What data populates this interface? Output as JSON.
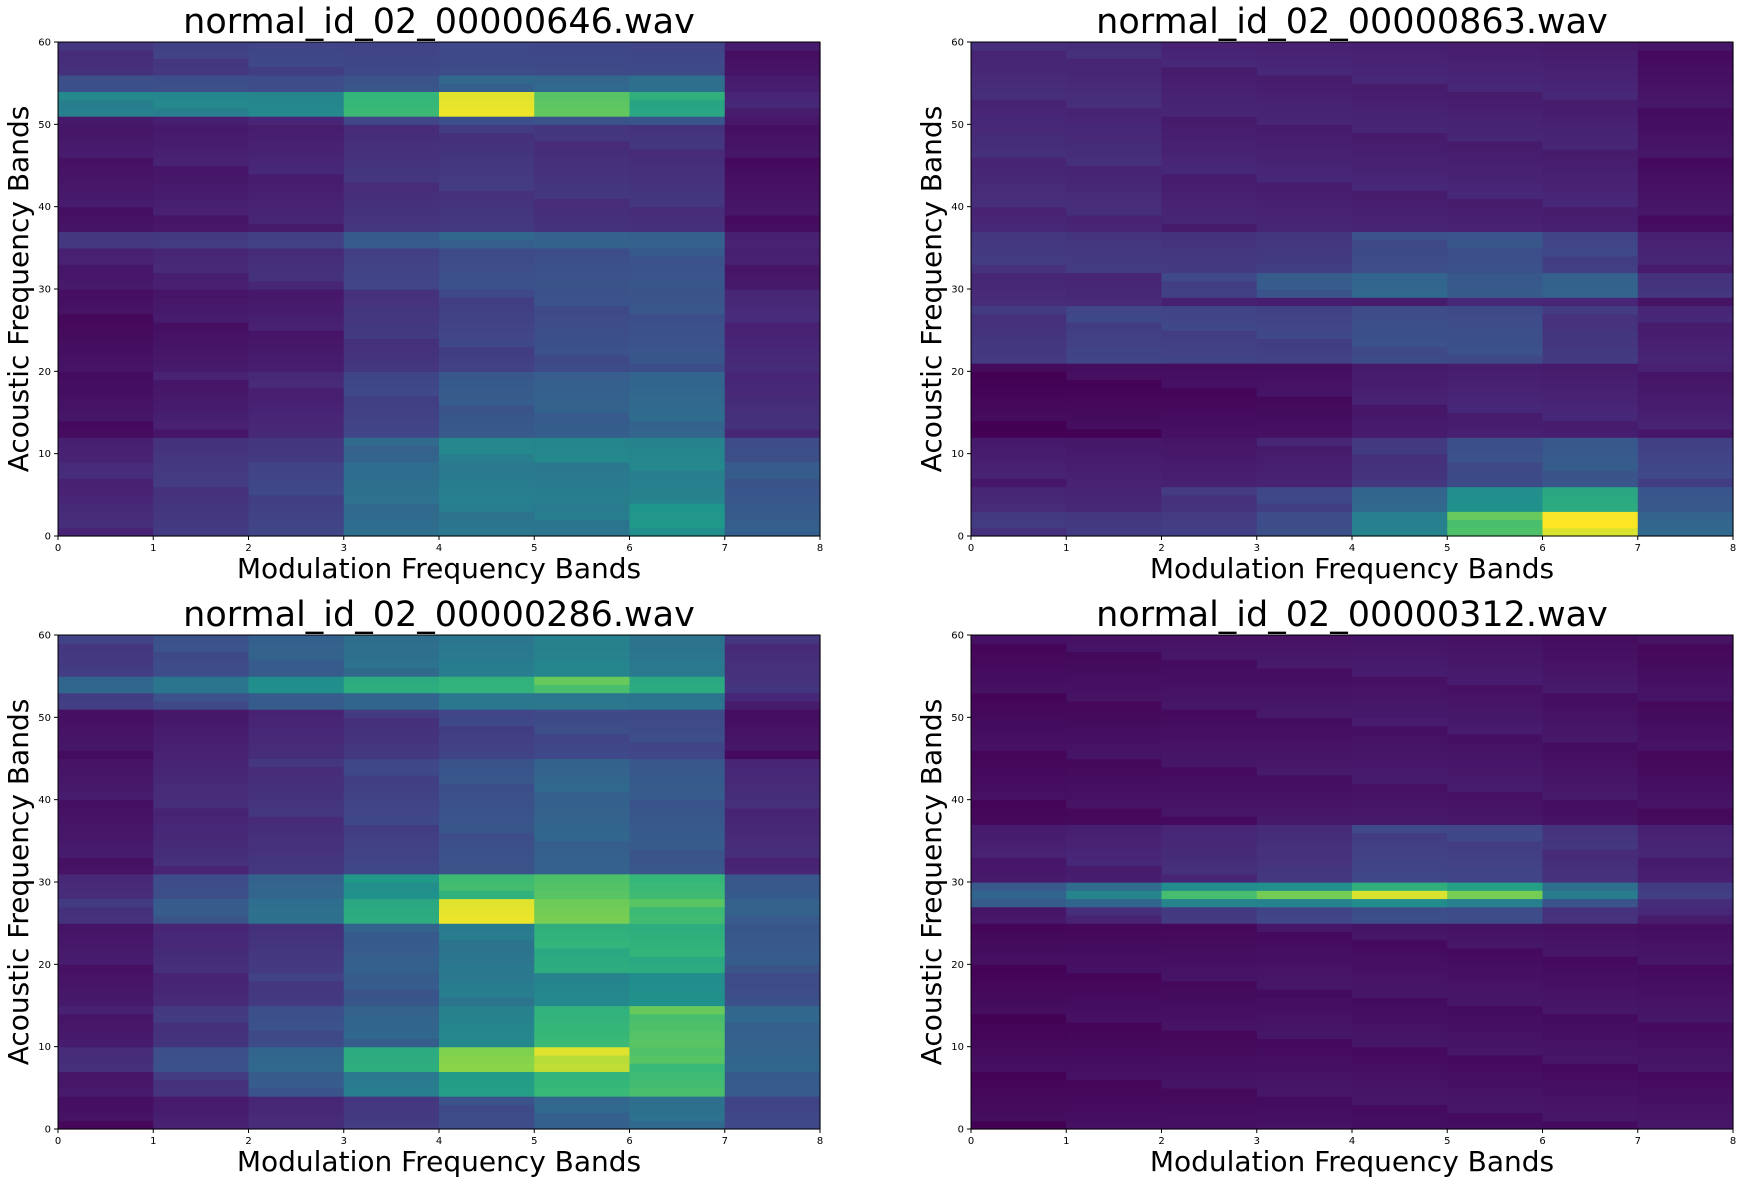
{
  "chart_data": [
    {
      "type": "heatmap",
      "title": "normal_id_02_00000646.wav",
      "xlabel": "Modulation Frequency Bands",
      "ylabel": "Acoustic Frequency Bands",
      "xlim": [
        0,
        8
      ],
      "ylim": [
        0,
        60
      ],
      "xticks": [
        "0",
        "1",
        "2",
        "3",
        "4",
        "5",
        "6",
        "7",
        "8"
      ],
      "yticks": [
        "0",
        "10",
        "20",
        "30",
        "40",
        "50",
        "60"
      ],
      "colormap": "viridis",
      "value_range": [
        0,
        1
      ],
      "columns": 8,
      "rows": 60,
      "base": [
        0.1,
        0.13,
        0.16,
        0.24,
        0.3,
        0.32,
        0.34,
        0.1
      ],
      "highlights": [
        {
          "y0": 0,
          "y1": 4,
          "values": [
            0.15,
            0.2,
            0.25,
            0.45,
            0.5,
            0.5,
            0.62,
            0.36
          ]
        },
        {
          "y0": 4,
          "y1": 9,
          "values": [
            0.14,
            0.2,
            0.25,
            0.45,
            0.52,
            0.52,
            0.55,
            0.35
          ]
        },
        {
          "y0": 9,
          "y1": 12,
          "values": [
            0.12,
            0.2,
            0.22,
            0.42,
            0.55,
            0.55,
            0.55,
            0.3
          ]
        },
        {
          "y0": 12,
          "y1": 20,
          "values": [
            0.06,
            0.1,
            0.13,
            0.25,
            0.35,
            0.38,
            0.42,
            0.16
          ]
        },
        {
          "y0": 20,
          "y1": 30,
          "values": [
            0.05,
            0.08,
            0.1,
            0.2,
            0.25,
            0.3,
            0.32,
            0.14
          ]
        },
        {
          "y0": 35,
          "y1": 37,
          "values": [
            0.2,
            0.22,
            0.25,
            0.38,
            0.4,
            0.38,
            0.38,
            0.12
          ]
        },
        {
          "y0": 37,
          "y1": 50,
          "values": [
            0.08,
            0.1,
            0.12,
            0.18,
            0.2,
            0.18,
            0.18,
            0.06
          ]
        },
        {
          "y0": 51,
          "y1": 54,
          "values": [
            0.55,
            0.55,
            0.55,
            0.75,
            0.98,
            0.82,
            0.7,
            0.12
          ]
        },
        {
          "y0": 54,
          "y1": 56,
          "values": [
            0.3,
            0.3,
            0.3,
            0.35,
            0.4,
            0.4,
            0.45,
            0.1
          ]
        },
        {
          "y0": 56,
          "y1": 60,
          "values": [
            0.18,
            0.22,
            0.25,
            0.25,
            0.28,
            0.28,
            0.28,
            0.08
          ]
        }
      ]
    },
    {
      "type": "heatmap",
      "title": "normal_id_02_00000863.wav",
      "xlabel": "Modulation Frequency Bands",
      "ylabel": "Acoustic Frequency Bands",
      "xlim": [
        0,
        8
      ],
      "ylim": [
        0,
        60
      ],
      "xticks": [
        "0",
        "1",
        "2",
        "3",
        "4",
        "5",
        "6",
        "7",
        "8"
      ],
      "yticks": [
        "0",
        "10",
        "20",
        "30",
        "40",
        "50",
        "60"
      ],
      "colormap": "viridis",
      "value_range": [
        0,
        1
      ],
      "columns": 8,
      "rows": 60,
      "base": [
        0.15,
        0.15,
        0.12,
        0.12,
        0.12,
        0.12,
        0.12,
        0.06
      ],
      "highlights": [
        {
          "y0": 0,
          "y1": 3,
          "values": [
            0.2,
            0.2,
            0.22,
            0.3,
            0.55,
            0.8,
            0.98,
            0.4
          ]
        },
        {
          "y0": 3,
          "y1": 6,
          "values": [
            0.15,
            0.15,
            0.2,
            0.25,
            0.4,
            0.6,
            0.7,
            0.35
          ]
        },
        {
          "y0": 6,
          "y1": 12,
          "values": [
            0.1,
            0.1,
            0.1,
            0.12,
            0.2,
            0.3,
            0.35,
            0.25
          ]
        },
        {
          "y0": 12,
          "y1": 21,
          "values": [
            0.02,
            0.03,
            0.04,
            0.05,
            0.1,
            0.12,
            0.12,
            0.1
          ]
        },
        {
          "y0": 21,
          "y1": 28,
          "values": [
            0.2,
            0.25,
            0.25,
            0.25,
            0.3,
            0.3,
            0.2,
            0.12
          ]
        },
        {
          "y0": 29,
          "y1": 32,
          "values": [
            0.15,
            0.15,
            0.25,
            0.35,
            0.4,
            0.35,
            0.4,
            0.2
          ]
        },
        {
          "y0": 32,
          "y1": 37,
          "values": [
            0.2,
            0.2,
            0.2,
            0.22,
            0.3,
            0.32,
            0.25,
            0.12
          ]
        },
        {
          "y0": 37,
          "y1": 60,
          "values": [
            0.15,
            0.15,
            0.12,
            0.12,
            0.12,
            0.12,
            0.12,
            0.06
          ]
        }
      ]
    },
    {
      "type": "heatmap",
      "title": "normal_id_02_00000286.wav",
      "xlabel": "Modulation Frequency Bands",
      "ylabel": "Acoustic Frequency Bands",
      "xlim": [
        0,
        8
      ],
      "ylim": [
        0,
        60
      ],
      "xticks": [
        "0",
        "1",
        "2",
        "3",
        "4",
        "5",
        "6",
        "7",
        "8"
      ],
      "yticks": [
        "0",
        "10",
        "20",
        "30",
        "40",
        "50",
        "60"
      ],
      "colormap": "viridis",
      "value_range": [
        0,
        1
      ],
      "columns": 8,
      "rows": 60,
      "base": [
        0.08,
        0.12,
        0.18,
        0.25,
        0.35,
        0.45,
        0.5,
        0.25
      ],
      "highlights": [
        {
          "y0": 0,
          "y1": 4,
          "values": [
            0.05,
            0.1,
            0.15,
            0.22,
            0.3,
            0.4,
            0.45,
            0.25
          ]
        },
        {
          "y0": 4,
          "y1": 7,
          "values": [
            0.1,
            0.2,
            0.35,
            0.5,
            0.65,
            0.75,
            0.78,
            0.38
          ]
        },
        {
          "y0": 7,
          "y1": 10,
          "values": [
            0.15,
            0.3,
            0.42,
            0.72,
            0.88,
            0.95,
            0.78,
            0.4
          ]
        },
        {
          "y0": 10,
          "y1": 15,
          "values": [
            0.1,
            0.2,
            0.3,
            0.4,
            0.55,
            0.75,
            0.8,
            0.4
          ]
        },
        {
          "y0": 15,
          "y1": 19,
          "values": [
            0.08,
            0.15,
            0.22,
            0.35,
            0.5,
            0.55,
            0.6,
            0.3
          ]
        },
        {
          "y0": 19,
          "y1": 25,
          "values": [
            0.08,
            0.15,
            0.2,
            0.38,
            0.5,
            0.72,
            0.72,
            0.35
          ]
        },
        {
          "y0": 25,
          "y1": 28,
          "values": [
            0.2,
            0.35,
            0.45,
            0.7,
            0.98,
            0.85,
            0.78,
            0.38
          ]
        },
        {
          "y0": 28,
          "y1": 31,
          "values": [
            0.15,
            0.3,
            0.42,
            0.62,
            0.75,
            0.78,
            0.75,
            0.35
          ]
        },
        {
          "y0": 31,
          "y1": 45,
          "values": [
            0.08,
            0.15,
            0.18,
            0.25,
            0.32,
            0.4,
            0.35,
            0.15
          ]
        },
        {
          "y0": 45,
          "y1": 51,
          "values": [
            0.06,
            0.1,
            0.15,
            0.2,
            0.25,
            0.28,
            0.28,
            0.06
          ]
        },
        {
          "y0": 51,
          "y1": 53,
          "values": [
            0.25,
            0.3,
            0.35,
            0.4,
            0.5,
            0.5,
            0.5,
            0.12
          ]
        },
        {
          "y0": 53,
          "y1": 55,
          "values": [
            0.4,
            0.48,
            0.6,
            0.72,
            0.75,
            0.8,
            0.68,
            0.18
          ]
        },
        {
          "y0": 55,
          "y1": 60,
          "values": [
            0.22,
            0.3,
            0.38,
            0.45,
            0.5,
            0.55,
            0.5,
            0.18
          ]
        }
      ]
    },
    {
      "type": "heatmap",
      "title": "normal_id_02_00000312.wav",
      "xlabel": "Modulation Frequency Bands",
      "ylabel": "Acoustic Frequency Bands",
      "xlim": [
        0,
        8
      ],
      "ylim": [
        0,
        60
      ],
      "xticks": [
        "0",
        "1",
        "2",
        "3",
        "4",
        "5",
        "6",
        "7",
        "8"
      ],
      "yticks": [
        "0",
        "10",
        "20",
        "30",
        "40",
        "50",
        "60"
      ],
      "colormap": "viridis",
      "value_range": [
        0,
        1
      ],
      "columns": 8,
      "rows": 60,
      "base": [
        0.04,
        0.05,
        0.06,
        0.07,
        0.08,
        0.08,
        0.07,
        0.05
      ],
      "highlights": [
        {
          "y0": 0,
          "y1": 25,
          "values": [
            0.03,
            0.04,
            0.05,
            0.06,
            0.06,
            0.06,
            0.06,
            0.06
          ]
        },
        {
          "y0": 25,
          "y1": 27,
          "values": [
            0.1,
            0.15,
            0.2,
            0.25,
            0.3,
            0.3,
            0.2,
            0.12
          ]
        },
        {
          "y0": 27,
          "y1": 28,
          "values": [
            0.35,
            0.4,
            0.55,
            0.55,
            0.6,
            0.55,
            0.3,
            0.15
          ]
        },
        {
          "y0": 28,
          "y1": 29,
          "values": [
            0.4,
            0.55,
            0.78,
            0.85,
            0.98,
            0.82,
            0.5,
            0.22
          ]
        },
        {
          "y0": 29,
          "y1": 30,
          "values": [
            0.35,
            0.45,
            0.6,
            0.62,
            0.7,
            0.65,
            0.45,
            0.22
          ]
        },
        {
          "y0": 30,
          "y1": 37,
          "values": [
            0.1,
            0.12,
            0.15,
            0.18,
            0.25,
            0.25,
            0.18,
            0.12
          ]
        },
        {
          "y0": 37,
          "y1": 60,
          "values": [
            0.04,
            0.05,
            0.06,
            0.07,
            0.08,
            0.08,
            0.07,
            0.05
          ]
        }
      ]
    }
  ]
}
